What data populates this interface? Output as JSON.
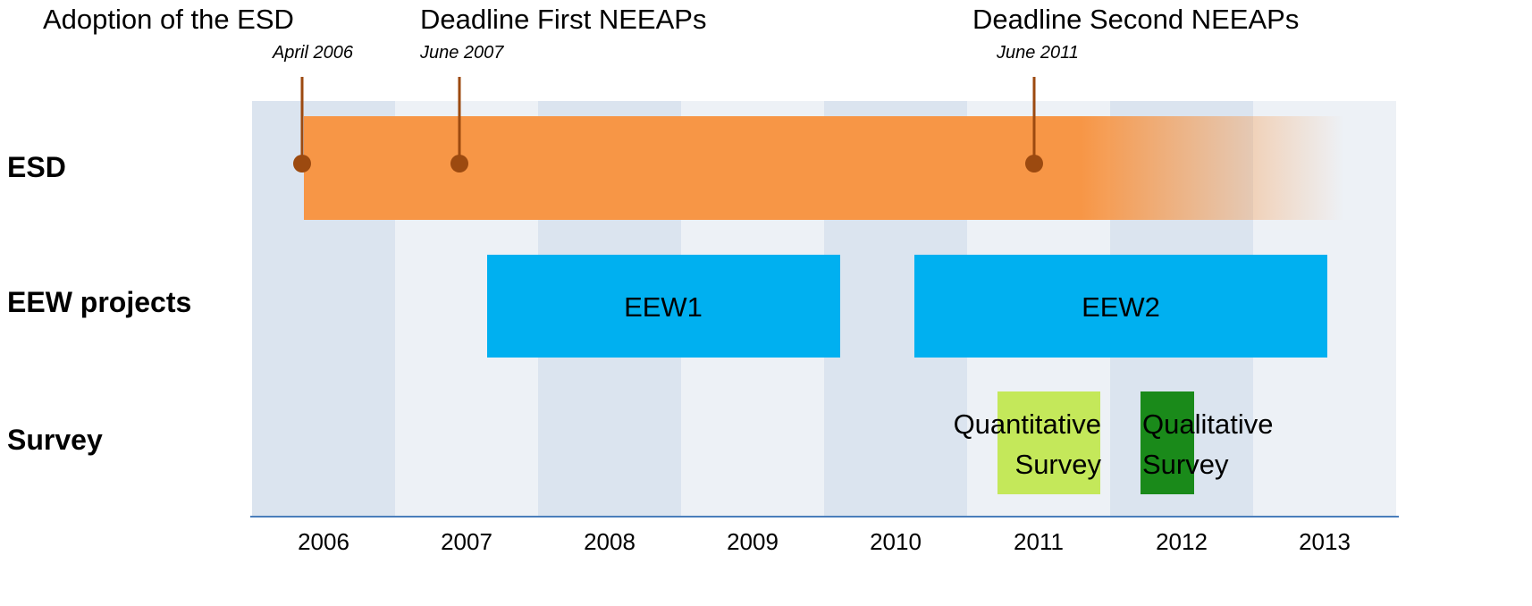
{
  "years": [
    "2006",
    "2007",
    "2008",
    "2009",
    "2010",
    "2011",
    "2012",
    "2013"
  ],
  "rows": [
    "ESD",
    "EEW projects",
    "Survey"
  ],
  "milestones": [
    {
      "title": "Adoption of the ESD",
      "date": "April 2006"
    },
    {
      "title": "Deadline First NEEAPs",
      "date": "June 2007"
    },
    {
      "title": "Deadline Second NEEAPs",
      "date": "June 2011"
    }
  ],
  "projects": [
    "EEW1",
    "EEW2"
  ],
  "surveys": [
    {
      "lines": [
        "Quantitative",
        "Survey"
      ]
    },
    {
      "lines": [
        "Qualitative",
        "Survey"
      ]
    }
  ]
}
